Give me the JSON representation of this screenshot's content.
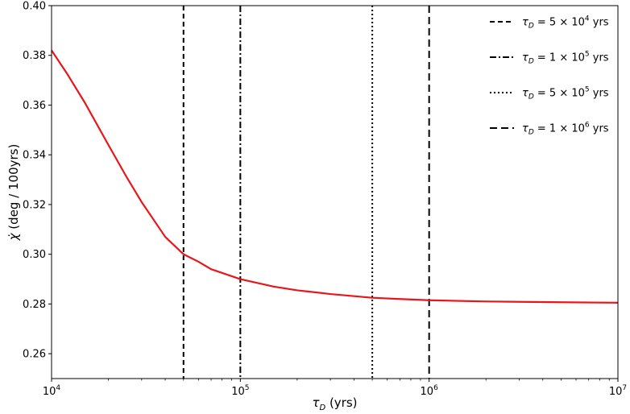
{
  "chart_data": {
    "type": "line",
    "xscale": "log",
    "xlim": [
      10000,
      10000000
    ],
    "ylim": [
      0.25,
      0.4
    ],
    "grid": false,
    "legend_position": "top-right",
    "xlabel": "τD (yrs)",
    "xlabel_parts": {
      "symbol": "τ",
      "subscript": "D",
      "suffix": " (yrs)"
    },
    "ylabel": "χ̇ (deg / 100yrs)",
    "ylabel_parts": {
      "symbol": "χ̇",
      "suffix": " (deg / 100yrs)"
    },
    "x_ticks": [
      {
        "value": 10000,
        "base": "10",
        "exp": "4"
      },
      {
        "value": 100000,
        "base": "10",
        "exp": "5"
      },
      {
        "value": 1000000,
        "base": "10",
        "exp": "6"
      },
      {
        "value": 10000000,
        "base": "10",
        "exp": "7"
      }
    ],
    "y_ticks": [
      "0.26",
      "0.28",
      "0.30",
      "0.32",
      "0.34",
      "0.36",
      "0.38",
      "0.40"
    ],
    "series": [
      {
        "color": "#e8161a",
        "points": [
          [
            10000,
            0.382
          ],
          [
            12000,
            0.373
          ],
          [
            15000,
            0.361
          ],
          [
            20000,
            0.344
          ],
          [
            25000,
            0.331
          ],
          [
            30000,
            0.321
          ],
          [
            40000,
            0.307
          ],
          [
            50000,
            0.3
          ],
          [
            60000,
            0.297
          ],
          [
            70000,
            0.294
          ],
          [
            80000,
            0.2925
          ],
          [
            100000,
            0.29
          ],
          [
            150000,
            0.287
          ],
          [
            200000,
            0.2855
          ],
          [
            300000,
            0.284
          ],
          [
            500000,
            0.2825
          ],
          [
            700000,
            0.282
          ],
          [
            1000000,
            0.2815
          ],
          [
            2000000,
            0.281
          ],
          [
            5000000,
            0.2807
          ],
          [
            10000000,
            0.2805
          ]
        ]
      }
    ],
    "vlines": [
      {
        "x": 50000,
        "style": "dashed",
        "label_prefix": "= 5 × 10",
        "label_exp": "4",
        "label_suffix": " yrs"
      },
      {
        "x": 100000,
        "style": "dashdot",
        "label_prefix": "= 1 × 10",
        "label_exp": "5",
        "label_suffix": " yrs"
      },
      {
        "x": 500000,
        "style": "dotted",
        "label_prefix": "= 5 × 10",
        "label_exp": "5",
        "label_suffix": " yrs"
      },
      {
        "x": 1000000,
        "style": "loosedash",
        "label_prefix": "= 1 × 10",
        "label_exp": "6",
        "label_suffix": " yrs"
      }
    ],
    "legend_symbol": "τ",
    "legend_subscript": "D"
  }
}
